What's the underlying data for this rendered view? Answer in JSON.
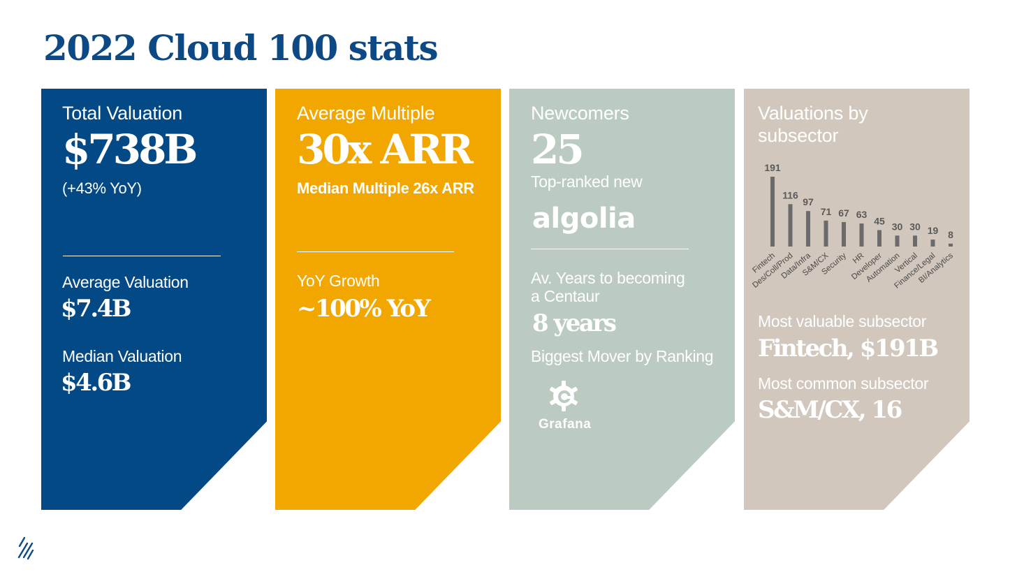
{
  "title": "2022 Cloud 100 stats",
  "colors": {
    "title": "#0d4a85",
    "card_blue": "#034986",
    "card_orange": "#f2a600",
    "card_sage": "#bccbc2",
    "card_tan": "#d1c7bc",
    "bar": "#6b6b6b"
  },
  "card1": {
    "label": "Total Valuation",
    "value": "$738B",
    "note": "(+43% YoY)",
    "avg_label": "Average Valuation",
    "avg_value": "$7.4B",
    "median_label": "Median Valuation",
    "median_value": "$4.6B"
  },
  "card2": {
    "label": "Average Multiple",
    "value": "30x ARR",
    "note": "Median Multiple 26x ARR",
    "growth_label": "YoY Growth",
    "growth_value": "~100% YoY"
  },
  "card3": {
    "label": "Newcomers",
    "value": "25",
    "top_ranked_label": "Top-ranked new",
    "top_ranked_logo": "algolia",
    "years_label_1": "Av. Years to becoming",
    "years_label_2": "a Centaur",
    "years_value": "8 years",
    "mover_label": "Biggest Mover by Ranking",
    "mover_logo": "Grafana",
    "mover_icon": "grafana-logo-icon"
  },
  "card4": {
    "label_1": "Valuations by",
    "label_2": "subsector",
    "most_valuable_label": "Most valuable subsector",
    "most_valuable_value": "Fintech, $191B",
    "most_common_label": "Most common subsector",
    "most_common_value": "S&M/CX, 16"
  },
  "chart_data": {
    "type": "bar",
    "title": "",
    "xlabel": "",
    "ylabel": "",
    "categories": [
      "Fintech",
      "Des/Coll/Prod",
      "Data/Infra",
      "S&M/CX",
      "Security",
      "HR",
      "Developer",
      "Automation",
      "Vertical",
      "Finance/Legal",
      "BI/Analytics"
    ],
    "values": [
      191,
      116,
      97,
      71,
      67,
      63,
      45,
      30,
      30,
      19,
      8
    ],
    "ylim": [
      0,
      191
    ],
    "grid": false
  },
  "brand_icon": "brand-slash-mark-icon"
}
